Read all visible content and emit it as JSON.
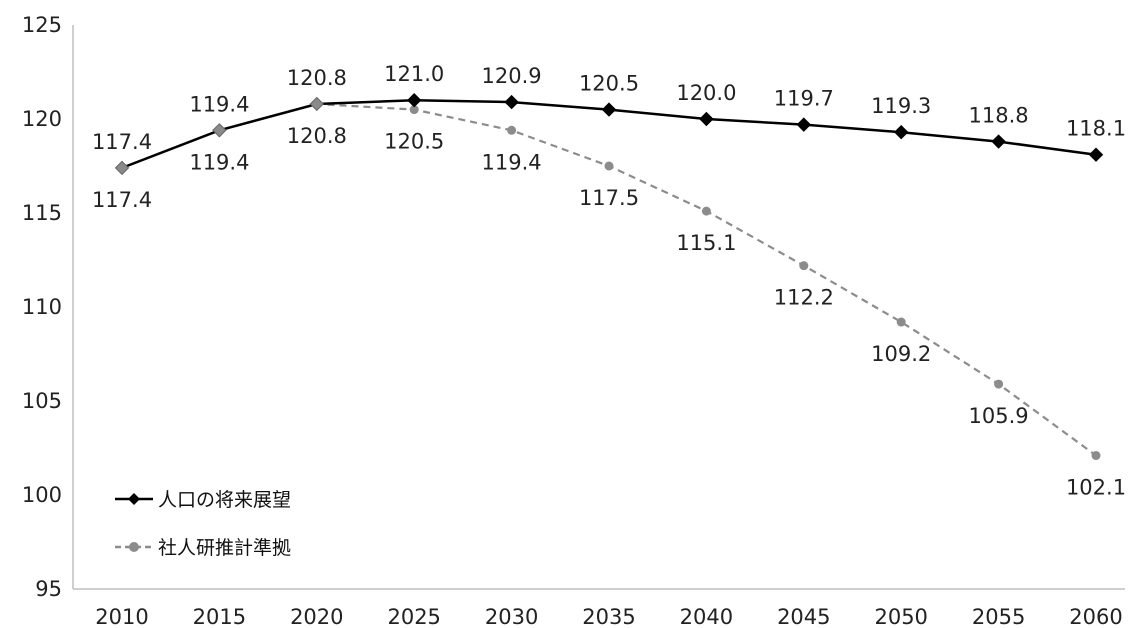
{
  "chart_data": {
    "type": "line",
    "categories": [
      "2010",
      "2015",
      "2020",
      "2025",
      "2030",
      "2035",
      "2040",
      "2045",
      "2050",
      "2055",
      "2060"
    ],
    "ylim": [
      95,
      125
    ],
    "yticks": [
      "95",
      "100",
      "105",
      "110",
      "115",
      "120",
      "125"
    ],
    "grid": false,
    "legend_position": "bottom-left",
    "series": [
      {
        "name": "人口の将来展望",
        "values": [
          117.4,
          119.4,
          120.8,
          121.0,
          120.9,
          120.5,
          120.0,
          119.7,
          119.3,
          118.8,
          118.1
        ],
        "labels": [
          "117.4",
          "119.4",
          "120.8",
          "121.0",
          "120.9",
          "120.5",
          "120.0",
          "119.7",
          "119.3",
          "118.8",
          "118.1"
        ],
        "color": "#000000",
        "line_style": "solid",
        "marker": "diamond"
      },
      {
        "name": "社人研推計準拠",
        "values": [
          117.4,
          119.4,
          120.8,
          120.5,
          119.4,
          117.5,
          115.1,
          112.2,
          109.2,
          105.9,
          102.1
        ],
        "labels": [
          "117.4",
          "119.4",
          "120.8",
          "120.5",
          "119.4",
          "117.5",
          "115.1",
          "112.2",
          "109.2",
          "105.9",
          "102.1"
        ],
        "color": "#8c8c8c",
        "line_style": "dashed",
        "marker": "circle"
      }
    ]
  }
}
